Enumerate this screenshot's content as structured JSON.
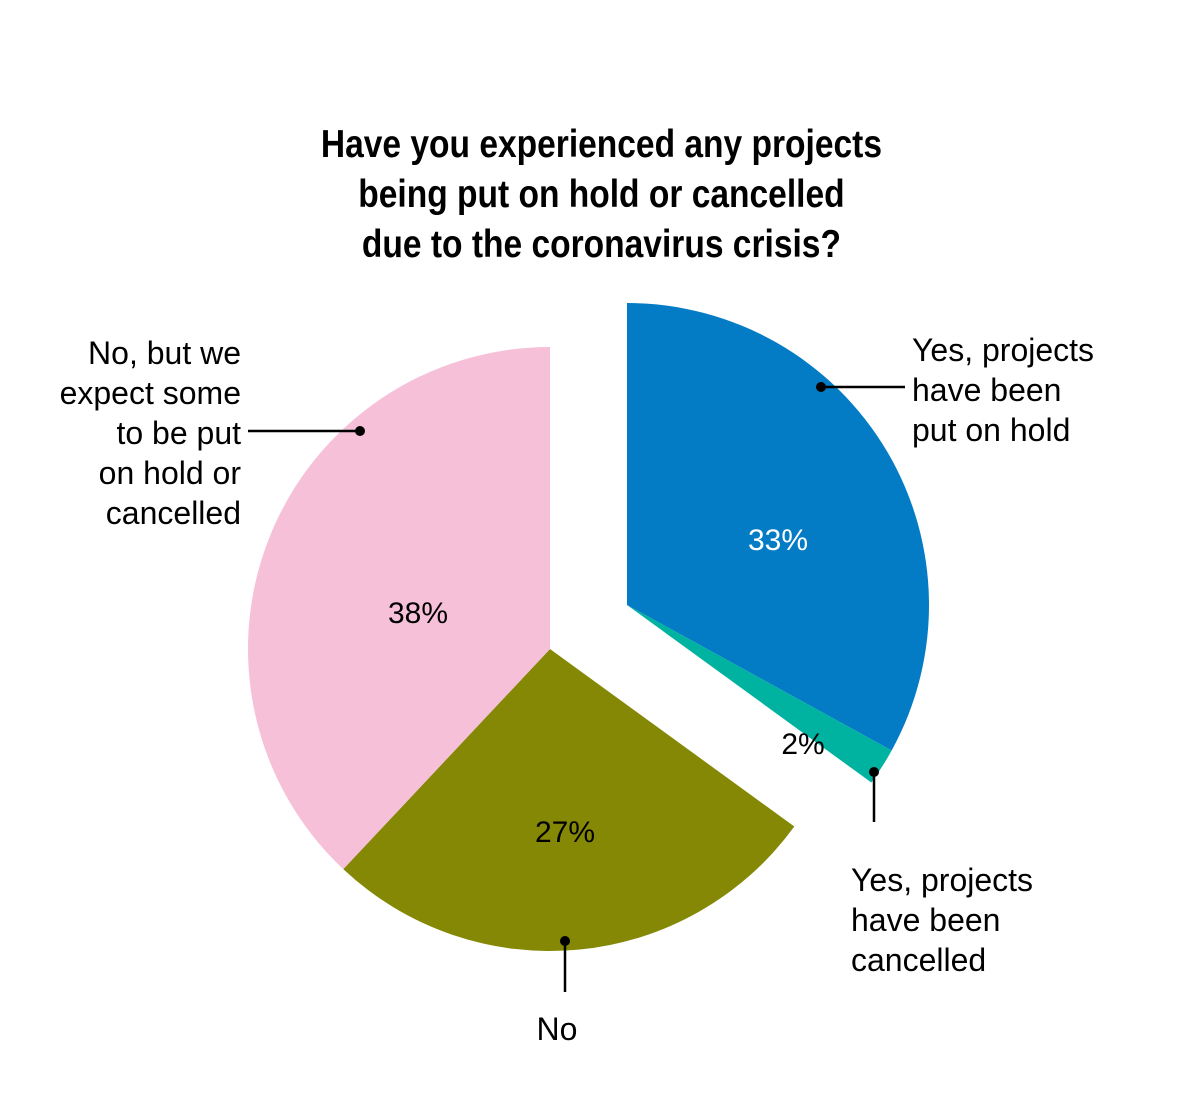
{
  "chart_data": {
    "type": "pie",
    "title": "Have you experienced any projects being put on hold or cancelled due to the coronavirus crisis?",
    "title_lines": [
      "Have you experienced any projects",
      "being put on hold or cancelled",
      "due to the coronavirus crisis?"
    ],
    "categories": [
      "Yes, projects have been put on hold",
      "Yes, projects have been cancelled",
      "No",
      "No, but we expect some to be put on hold or cancelled"
    ],
    "values": [
      33,
      2,
      27,
      38
    ],
    "value_labels": [
      "33%",
      "2%",
      "27%",
      "38%"
    ],
    "colors": [
      "#037cc5",
      "#00b3a0",
      "#858804",
      "#f7c0d9"
    ],
    "exploded": [
      true,
      true,
      false,
      false
    ],
    "start_angle_deg": 0,
    "direction": "clockwise",
    "legend": "none (callout labels)"
  },
  "labels": {
    "hold": [
      "Yes, projects",
      "have been",
      "put on hold"
    ],
    "cancelled": [
      "Yes, projects",
      "have been",
      "cancelled"
    ],
    "no": [
      "No"
    ],
    "expect": [
      "No, but we",
      "expect some",
      "to be put",
      "on hold or",
      "cancelled"
    ]
  }
}
